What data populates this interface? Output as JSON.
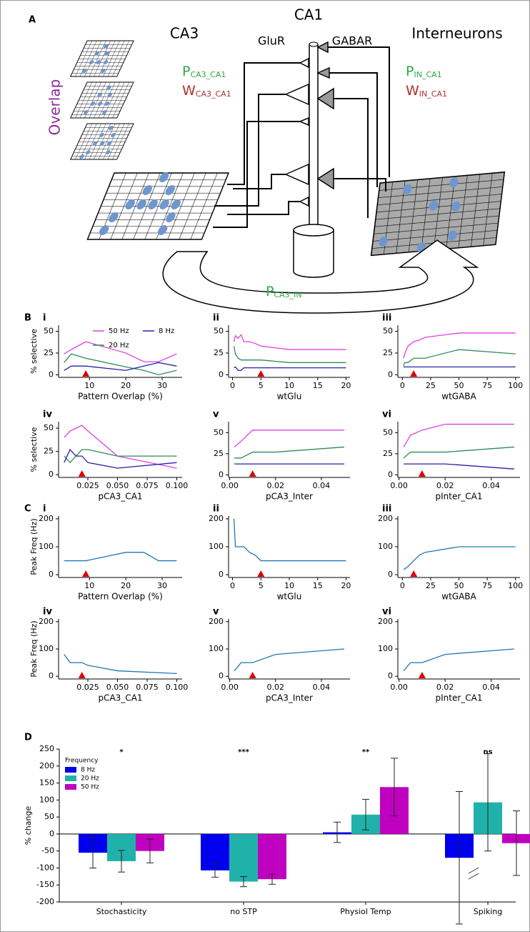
{
  "diagram": {
    "label": "A",
    "ca3": "CA3",
    "ca1": "CA1",
    "glur": "GluR",
    "gabar": "GABAR",
    "interneurons": "Interneurons",
    "overlap": "Overlap",
    "p_ca3_ca1": {
      "main": "P",
      "sub": "CA3_CA1"
    },
    "w_ca3_ca1": {
      "main": "W",
      "sub": "CA3_CA1"
    },
    "p_in_ca1": {
      "main": "P",
      "sub": "IN_CA1"
    },
    "w_in_ca1": {
      "main": "W",
      "sub": "IN_CA1"
    },
    "p_ca3_in": {
      "main": "P",
      "sub": "CA3_IN"
    }
  },
  "chart_data": [
    {
      "type": "line",
      "letter": "B",
      "panel": "i",
      "ylabel": "% selective",
      "xlabel": "Pattern Overlap (%)",
      "x": [
        3,
        5,
        9,
        20,
        25,
        29,
        34
      ],
      "series": [
        {
          "name": "50 Hz",
          "color": "#e040e0",
          "values": [
            24,
            29,
            38,
            25,
            15,
            15,
            24
          ]
        },
        {
          "name": "20 Hz",
          "color": "#2e8b57",
          "values": [
            14,
            24,
            19,
            9,
            5,
            0,
            5
          ]
        },
        {
          "name": "8 Hz",
          "color": "#2222aa",
          "values": [
            5,
            10,
            10,
            5,
            10,
            14,
            10
          ]
        }
      ],
      "xlim": [
        1.5,
        35.5
      ],
      "xticks": [
        10,
        20,
        30
      ],
      "ylim": [
        -3,
        57
      ],
      "yticks": [
        0,
        25,
        50
      ],
      "legend": true,
      "marker_x": 9
    },
    {
      "type": "line",
      "panel": "ii",
      "xlabel": "wtGlu",
      "x": [
        0.25,
        0.5,
        1,
        1.5,
        2,
        3,
        4,
        5,
        10,
        20
      ],
      "series": [
        {
          "color": "#e040e0",
          "values": [
            38,
            45,
            42,
            46,
            38,
            38,
            36,
            33,
            29,
            29
          ]
        },
        {
          "color": "#2e8b57",
          "values": [
            33,
            24,
            19,
            17,
            17,
            17,
            17,
            17,
            14,
            14
          ]
        },
        {
          "color": "#2222aa",
          "values": [
            8,
            9,
            5,
            5,
            8,
            8,
            8,
            8,
            8,
            8
          ]
        }
      ],
      "xlim": [
        -0.7,
        20.7
      ],
      "xticks": [
        0,
        5,
        10,
        15,
        20
      ],
      "ylim": [
        -3,
        57
      ],
      "yticks": [
        0,
        25,
        50
      ],
      "legend": false,
      "marker_x": 5
    },
    {
      "type": "line",
      "panel": "iii",
      "xlabel": "wtGABA",
      "x": [
        1,
        2,
        5,
        10,
        15,
        20,
        50,
        100
      ],
      "series": [
        {
          "color": "#e040e0",
          "values": [
            19,
            24,
            33,
            38,
            40,
            43,
            48,
            48
          ]
        },
        {
          "color": "#2e8b57",
          "values": [
            10,
            14,
            14,
            19,
            19,
            19,
            29,
            24
          ]
        },
        {
          "color": "#2222aa",
          "values": [
            9,
            9,
            9,
            9,
            9,
            9,
            9,
            9
          ]
        }
      ],
      "xlim": [
        -4,
        104
      ],
      "xticks": [
        0,
        25,
        50,
        75,
        100
      ],
      "ylim": [
        -3,
        57
      ],
      "yticks": [
        0,
        25,
        50
      ],
      "legend": false,
      "marker_x": 10
    },
    {
      "type": "line",
      "panel": "iv",
      "ylabel": "% selective",
      "xlabel": "pCA3_CA1",
      "x": [
        0.005,
        0.01,
        0.015,
        0.02,
        0.025,
        0.05,
        0.1
      ],
      "series": [
        {
          "color": "#e040e0",
          "values": [
            40,
            47,
            50,
            53,
            47,
            20,
            7
          ]
        },
        {
          "color": "#2e8b57",
          "values": [
            20,
            13,
            20,
            27,
            27,
            20,
            20
          ]
        },
        {
          "color": "#2222aa",
          "values": [
            13,
            27,
            20,
            20,
            13,
            7,
            13
          ]
        }
      ],
      "xlim": [
        0.0003,
        0.1045
      ],
      "xticks": [
        {
          "value": 0.025,
          "label": "0.025"
        },
        {
          "value": 0.05,
          "label": "0.050"
        },
        {
          "value": 0.075,
          "label": "0.075"
        },
        {
          "value": 0.1,
          "label": "0.100"
        }
      ],
      "ylim": [
        -3,
        57
      ],
      "yticks": [
        0,
        25,
        50
      ],
      "legend": false,
      "marker_x": 0.02
    },
    {
      "type": "line",
      "panel": "v",
      "xlabel": "pCA3_Inter",
      "x": [
        0.002,
        0.005,
        0.01,
        0.02,
        0.05
      ],
      "series": [
        {
          "color": "#e040e0",
          "values": [
            33,
            40,
            53,
            53,
            53
          ]
        },
        {
          "color": "#2e8b57",
          "values": [
            20,
            20,
            27,
            27,
            33
          ]
        },
        {
          "color": "#2222aa",
          "values": [
            13,
            13,
            13,
            13,
            13
          ]
        }
      ],
      "xlim": [
        -0.0005,
        0.0525
      ],
      "xticks": [
        {
          "value": 0,
          "label": "0.00"
        },
        0.02,
        0.04
      ],
      "ylim": [
        -3,
        63
      ],
      "yticks": [
        0,
        25,
        50
      ],
      "legend": false,
      "marker_x": 0.01
    },
    {
      "type": "line",
      "panel": "vi",
      "xlabel": "pInter_CA1",
      "x": [
        0.002,
        0.005,
        0.01,
        0.02,
        0.05
      ],
      "series": [
        {
          "color": "#e040e0",
          "values": [
            33,
            47,
            53,
            60,
            60
          ]
        },
        {
          "color": "#2e8b57",
          "values": [
            20,
            27,
            27,
            27,
            33
          ]
        },
        {
          "color": "#2222aa",
          "values": [
            13,
            13,
            13,
            13,
            7
          ]
        }
      ],
      "xlim": [
        -0.0005,
        0.0525
      ],
      "xticks": [
        {
          "value": 0,
          "label": "0.00"
        },
        0.02,
        0.04
      ],
      "ylim": [
        -3,
        63
      ],
      "yticks": [
        0,
        25,
        50
      ],
      "legend": false,
      "marker_x": 0.01
    },
    {
      "type": "line",
      "letter": "C",
      "panel": "i",
      "ylabel": "Peak Freq (Hz)",
      "xlabel": "Pattern Overlap (%)",
      "x": [
        3,
        9,
        20,
        25,
        29,
        34
      ],
      "color": "#1f77b4",
      "values": [
        50,
        50,
        80,
        80,
        50,
        50
      ],
      "xlim": [
        1.5,
        35.5
      ],
      "xticks": [
        10,
        20,
        30
      ],
      "ylim": [
        -10,
        210
      ],
      "yticks": [
        0,
        100,
        200
      ],
      "marker_x": 9
    },
    {
      "type": "line",
      "panel": "ii",
      "xlabel": "wtGlu",
      "x": [
        0.25,
        0.5,
        1,
        1.5,
        2,
        3,
        4,
        5,
        10,
        20
      ],
      "color": "#1f77b4",
      "values": [
        200,
        100,
        100,
        100,
        100,
        80,
        70,
        50,
        50,
        50
      ],
      "xlim": [
        -0.7,
        20.7
      ],
      "xticks": [
        0,
        5,
        10,
        15,
        20
      ],
      "ylim": [
        -10,
        210
      ],
      "yticks": [
        0,
        100,
        200
      ],
      "marker_x": 5
    },
    {
      "type": "line",
      "panel": "iii",
      "xlabel": "wtGABA",
      "x": [
        1,
        2,
        5,
        10,
        15,
        20,
        50,
        100
      ],
      "color": "#1f77b4",
      "values": [
        20,
        20,
        30,
        50,
        70,
        80,
        100,
        100
      ],
      "xlim": [
        -4,
        104
      ],
      "xticks": [
        0,
        25,
        50,
        75,
        100
      ],
      "ylim": [
        -10,
        210
      ],
      "yticks": [
        0,
        100,
        200
      ],
      "marker_x": 10
    },
    {
      "type": "line",
      "panel": "iv",
      "ylabel": "Peak Freq (Hz)",
      "xlabel": "pCA3_CA1",
      "x": [
        0.005,
        0.01,
        0.02,
        0.025,
        0.05,
        0.1
      ],
      "color": "#1f77b4",
      "values": [
        80,
        50,
        50,
        40,
        20,
        10
      ],
      "xlim": [
        0.0003,
        0.1045
      ],
      "xticks": [
        {
          "value": 0.025,
          "label": "0.025"
        },
        {
          "value": 0.05,
          "label": "0.050"
        },
        {
          "value": 0.075,
          "label": "0.075"
        },
        {
          "value": 0.1,
          "label": "0.100"
        }
      ],
      "ylim": [
        -10,
        210
      ],
      "yticks": [
        0,
        100,
        200
      ],
      "marker_x": 0.02
    },
    {
      "type": "line",
      "panel": "v",
      "xlabel": "pCA3_Inter",
      "x": [
        0.002,
        0.005,
        0.01,
        0.02,
        0.05
      ],
      "color": "#1f77b4",
      "values": [
        20,
        50,
        50,
        80,
        100
      ],
      "xlim": [
        -0.0005,
        0.0525
      ],
      "xticks": [
        {
          "value": 0,
          "label": "0.00"
        },
        0.02,
        0.04
      ],
      "ylim": [
        -10,
        210
      ],
      "yticks": [
        0,
        100,
        200
      ],
      "marker_x": 0.01
    },
    {
      "type": "line",
      "panel": "vi",
      "xlabel": "pInter_CA1",
      "x": [
        0.002,
        0.005,
        0.01,
        0.02,
        0.05
      ],
      "color": "#1f77b4",
      "values": [
        20,
        50,
        50,
        80,
        100
      ],
      "xlim": [
        -0.0005,
        0.0525
      ],
      "xticks": [
        {
          "value": 0,
          "label": "0.00"
        },
        0.02,
        0.04
      ],
      "ylim": [
        -10,
        210
      ],
      "yticks": [
        0,
        100,
        200
      ],
      "marker_x": 0.01
    },
    {
      "type": "bar",
      "letter": "D",
      "ylabel": "% change",
      "categories": [
        "Stochasticity",
        "no STP",
        "Physiol Temp",
        "Spiking"
      ],
      "series": [
        {
          "name": "8 Hz",
          "color": "#0000ee",
          "values": [
            -55,
            -107,
            5,
            -70
          ],
          "errors": [
            45,
            20,
            30,
            195
          ]
        },
        {
          "name": "20 Hz",
          "color": "#20b2aa",
          "values": [
            -80,
            -140,
            57,
            93
          ],
          "errors": [
            32,
            15,
            45,
            143
          ]
        },
        {
          "name": "50 Hz",
          "color": "#c000c0",
          "values": [
            -50,
            -133,
            138,
            -27
          ],
          "errors": [
            35,
            15,
            85,
            95
          ]
        }
      ],
      "ylim": [
        -200,
        250
      ],
      "yticks": [
        -200,
        -150,
        -100,
        -50,
        0,
        50,
        100,
        150,
        200,
        250
      ],
      "legend_title": "Frequency",
      "annotations": [
        "*",
        "***",
        "**",
        "ns"
      ]
    }
  ]
}
